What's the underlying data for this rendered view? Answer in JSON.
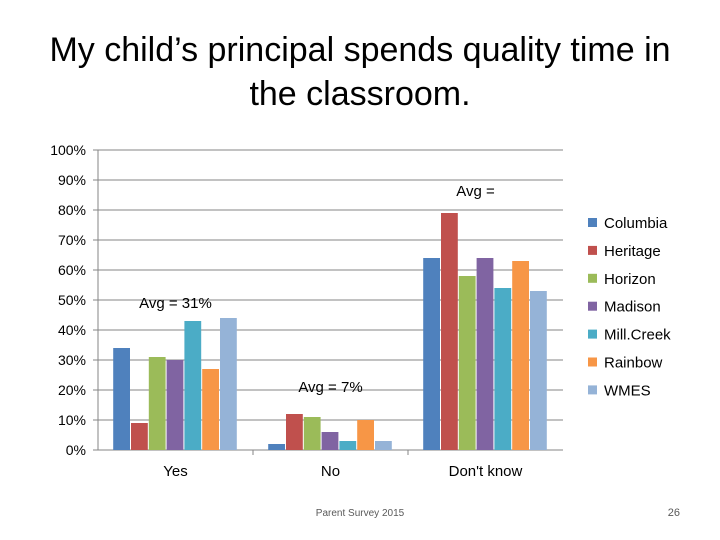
{
  "slide": {
    "title": "My child’s principal spends quality time in the classroom.",
    "footer": "Parent Survey 2015",
    "page_number": "26"
  },
  "chart_data": {
    "type": "bar",
    "categories": [
      "Yes",
      "No",
      "Don't know"
    ],
    "y_ticks": [
      "0%",
      "10%",
      "20%",
      "30%",
      "40%",
      "50%",
      "60%",
      "70%",
      "80%",
      "90%",
      "100%"
    ],
    "ylim": [
      0,
      100
    ],
    "grid": true,
    "legend": "right",
    "series": [
      {
        "name": "Columbia",
        "color": "#4F81BD",
        "values": [
          34,
          2,
          64
        ]
      },
      {
        "name": "Heritage",
        "color": "#C0504D",
        "values": [
          9,
          12,
          79
        ]
      },
      {
        "name": "Horizon",
        "color": "#9BBB59",
        "values": [
          31,
          11,
          58
        ]
      },
      {
        "name": "Madison",
        "color": "#8064A2",
        "values": [
          30,
          6,
          64
        ]
      },
      {
        "name": "Mill.Creek",
        "color": "#4BACC6",
        "values": [
          43,
          3,
          54
        ]
      },
      {
        "name": "Rainbow",
        "color": "#F79646",
        "values": [
          27,
          10,
          63
        ]
      },
      {
        "name": "WMES",
        "color": "#95B3D7",
        "values": [
          44,
          3,
          53
        ]
      }
    ],
    "annotations": [
      "Avg = 31%",
      "Avg = 7%",
      "Avg ="
    ]
  }
}
